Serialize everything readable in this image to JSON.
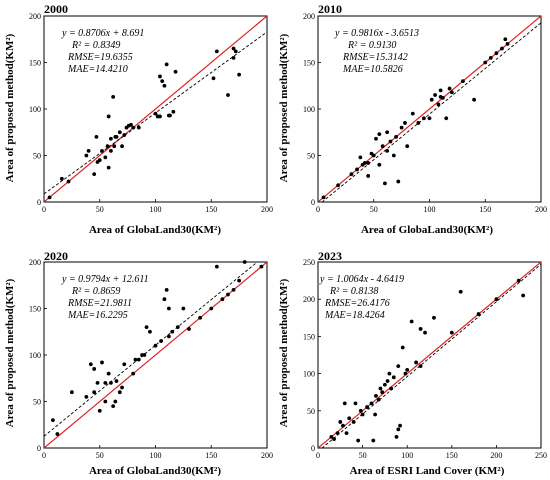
{
  "chart_data": [
    {
      "type": "scatter",
      "title": "2000",
      "xlabel": "Area of GlobaLand30(KM²)",
      "ylabel": "Area of proposed method(KM²)",
      "xlim": [
        0,
        200
      ],
      "ylim": [
        0,
        200
      ],
      "xticks": [
        0,
        50,
        100,
        150,
        200
      ],
      "yticks": [
        0,
        50,
        100,
        150,
        200
      ],
      "annotations": [
        "y = 0.8706x + 8.691",
        "R² = 0.8349",
        "RMSE=19.6355",
        "MAE=14.4210"
      ],
      "fit": {
        "slope": 0.8706,
        "intercept": 8.691
      },
      "identity_line": true,
      "points": [
        [
          5,
          5
        ],
        [
          16,
          25
        ],
        [
          22,
          22
        ],
        [
          38,
          50
        ],
        [
          40,
          55
        ],
        [
          45,
          30
        ],
        [
          48,
          43
        ],
        [
          50,
          45
        ],
        [
          52,
          55
        ],
        [
          55,
          48
        ],
        [
          57,
          60
        ],
        [
          58,
          92
        ],
        [
          60,
          68
        ],
        [
          60,
          55
        ],
        [
          62,
          113
        ],
        [
          63,
          60
        ],
        [
          65,
          70
        ],
        [
          68,
          75
        ],
        [
          70,
          60
        ],
        [
          72,
          72
        ],
        [
          74,
          80
        ],
        [
          76,
          82
        ],
        [
          78,
          83
        ],
        [
          80,
          80
        ],
        [
          85,
          80
        ],
        [
          100,
          95
        ],
        [
          102,
          92
        ],
        [
          104,
          135
        ],
        [
          106,
          130
        ],
        [
          108,
          125
        ],
        [
          110,
          148
        ],
        [
          112,
          93
        ],
        [
          116,
          97
        ],
        [
          118,
          140
        ],
        [
          152,
          133
        ],
        [
          155,
          162
        ],
        [
          170,
          165
        ],
        [
          175,
          137
        ],
        [
          165,
          115
        ],
        [
          170,
          155
        ],
        [
          172,
          162
        ],
        [
          58,
          37
        ],
        [
          64,
          70
        ],
        [
          47,
          70
        ],
        [
          113,
          93
        ],
        [
          104,
          92
        ]
      ]
    },
    {
      "type": "scatter",
      "title": "2010",
      "xlabel": "Area of GlobaLand30(KM²)",
      "ylabel": "Area of proposed method(KM²)",
      "xlim": [
        0,
        200
      ],
      "ylim": [
        0,
        200
      ],
      "xticks": [
        0,
        50,
        100,
        150,
        200
      ],
      "yticks": [
        0,
        50,
        100,
        150,
        200
      ],
      "annotations": [
        "y = 0.9816x - 3.6513",
        "R² = 0.9130",
        "RMSE=15.3142",
        "MAE=10.5826"
      ],
      "fit": {
        "slope": 0.9816,
        "intercept": -3.6513
      },
      "identity_line": true,
      "points": [
        [
          5,
          5
        ],
        [
          18,
          18
        ],
        [
          30,
          30
        ],
        [
          35,
          35
        ],
        [
          38,
          48
        ],
        [
          40,
          40
        ],
        [
          42,
          42
        ],
        [
          45,
          42
        ],
        [
          48,
          52
        ],
        [
          50,
          50
        ],
        [
          52,
          68
        ],
        [
          55,
          40
        ],
        [
          58,
          60
        ],
        [
          60,
          20
        ],
        [
          62,
          75
        ],
        [
          62,
          55
        ],
        [
          65,
          65
        ],
        [
          68,
          50
        ],
        [
          70,
          70
        ],
        [
          72,
          22
        ],
        [
          75,
          80
        ],
        [
          78,
          85
        ],
        [
          80,
          60
        ],
        [
          85,
          95
        ],
        [
          90,
          85
        ],
        [
          100,
          90
        ],
        [
          102,
          110
        ],
        [
          105,
          115
        ],
        [
          108,
          105
        ],
        [
          110,
          120
        ],
        [
          112,
          112
        ],
        [
          115,
          90
        ],
        [
          118,
          122
        ],
        [
          120,
          118
        ],
        [
          130,
          130
        ],
        [
          140,
          110
        ],
        [
          150,
          150
        ],
        [
          155,
          155
        ],
        [
          160,
          160
        ],
        [
          165,
          165
        ],
        [
          168,
          175
        ],
        [
          170,
          170
        ],
        [
          55,
          73
        ],
        [
          45,
          28
        ],
        [
          95,
          90
        ],
        [
          110,
          113
        ]
      ]
    },
    {
      "type": "scatter",
      "title": "2020",
      "xlabel": "Area of GlobaLand30(KM²)",
      "ylabel": "Area of proposed method(KM²)",
      "xlim": [
        0,
        200
      ],
      "ylim": [
        0,
        200
      ],
      "xticks": [
        0,
        50,
        100,
        150,
        200
      ],
      "yticks": [
        0,
        50,
        100,
        150,
        200
      ],
      "annotations": [
        "y = 0.9794x + 12.611",
        "R² = 0.8659",
        "RMSE=21.9811",
        "MAE=16.2295"
      ],
      "fit": {
        "slope": 0.9794,
        "intercept": 12.611
      },
      "identity_line": true,
      "points": [
        [
          8,
          30
        ],
        [
          12,
          15
        ],
        [
          25,
          60
        ],
        [
          38,
          55
        ],
        [
          42,
          90
        ],
        [
          45,
          60
        ],
        [
          48,
          70
        ],
        [
          50,
          40
        ],
        [
          52,
          92
        ],
        [
          55,
          50
        ],
        [
          55,
          70
        ],
        [
          58,
          80
        ],
        [
          60,
          70
        ],
        [
          62,
          45
        ],
        [
          65,
          72
        ],
        [
          68,
          60
        ],
        [
          70,
          65
        ],
        [
          72,
          90
        ],
        [
          80,
          80
        ],
        [
          85,
          95
        ],
        [
          88,
          100
        ],
        [
          90,
          100
        ],
        [
          92,
          130
        ],
        [
          95,
          125
        ],
        [
          100,
          110
        ],
        [
          105,
          115
        ],
        [
          108,
          160
        ],
        [
          110,
          170
        ],
        [
          112,
          120
        ],
        [
          115,
          125
        ],
        [
          120,
          130
        ],
        [
          125,
          150
        ],
        [
          130,
          128
        ],
        [
          140,
          140
        ],
        [
          150,
          150
        ],
        [
          155,
          195
        ],
        [
          160,
          160
        ],
        [
          165,
          165
        ],
        [
          170,
          170
        ],
        [
          175,
          180
        ],
        [
          180,
          200
        ],
        [
          195,
          195
        ],
        [
          45,
          85
        ],
        [
          82,
          95
        ],
        [
          64,
          50
        ],
        [
          112,
          150
        ]
      ]
    },
    {
      "type": "scatter",
      "title": "2023",
      "xlabel": "Area of ESRI Land Cover (KM²)",
      "ylabel": "Area of proposed method(KM²)",
      "xlim": [
        0,
        250
      ],
      "ylim": [
        0,
        250
      ],
      "xticks": [
        0,
        50,
        100,
        150,
        200,
        250
      ],
      "yticks": [
        0,
        50,
        100,
        150,
        200,
        250
      ],
      "annotations": [
        "y = 1.0064x - 4.6419",
        "R² = 0.8138",
        "RMSE=26.4176",
        "MAE=18.4264"
      ],
      "fit": {
        "slope": 1.0064,
        "intercept": -4.6419
      },
      "identity_line": true,
      "points": [
        [
          15,
          15
        ],
        [
          18,
          12
        ],
        [
          22,
          20
        ],
        [
          25,
          35
        ],
        [
          28,
          30
        ],
        [
          30,
          60
        ],
        [
          32,
          20
        ],
        [
          35,
          40
        ],
        [
          40,
          35
        ],
        [
          42,
          60
        ],
        [
          45,
          10
        ],
        [
          48,
          50
        ],
        [
          50,
          45
        ],
        [
          55,
          55
        ],
        [
          60,
          60
        ],
        [
          62,
          10
        ],
        [
          65,
          70
        ],
        [
          68,
          65
        ],
        [
          70,
          80
        ],
        [
          72,
          75
        ],
        [
          75,
          85
        ],
        [
          78,
          90
        ],
        [
          80,
          100
        ],
        [
          82,
          80
        ],
        [
          85,
          95
        ],
        [
          88,
          15
        ],
        [
          90,
          110
        ],
        [
          92,
          30
        ],
        [
          95,
          135
        ],
        [
          98,
          100
        ],
        [
          100,
          105
        ],
        [
          105,
          170
        ],
        [
          110,
          115
        ],
        [
          115,
          160
        ],
        [
          120,
          155
        ],
        [
          130,
          175
        ],
        [
          150,
          155
        ],
        [
          160,
          210
        ],
        [
          180,
          180
        ],
        [
          200,
          200
        ],
        [
          225,
          225
        ],
        [
          230,
          205
        ],
        [
          64,
          45
        ],
        [
          90,
          25
        ],
        [
          115,
          110
        ]
      ]
    }
  ],
  "legend_colors": {
    "identity": "#e02020",
    "fit": "#000000",
    "points": "#000000"
  }
}
